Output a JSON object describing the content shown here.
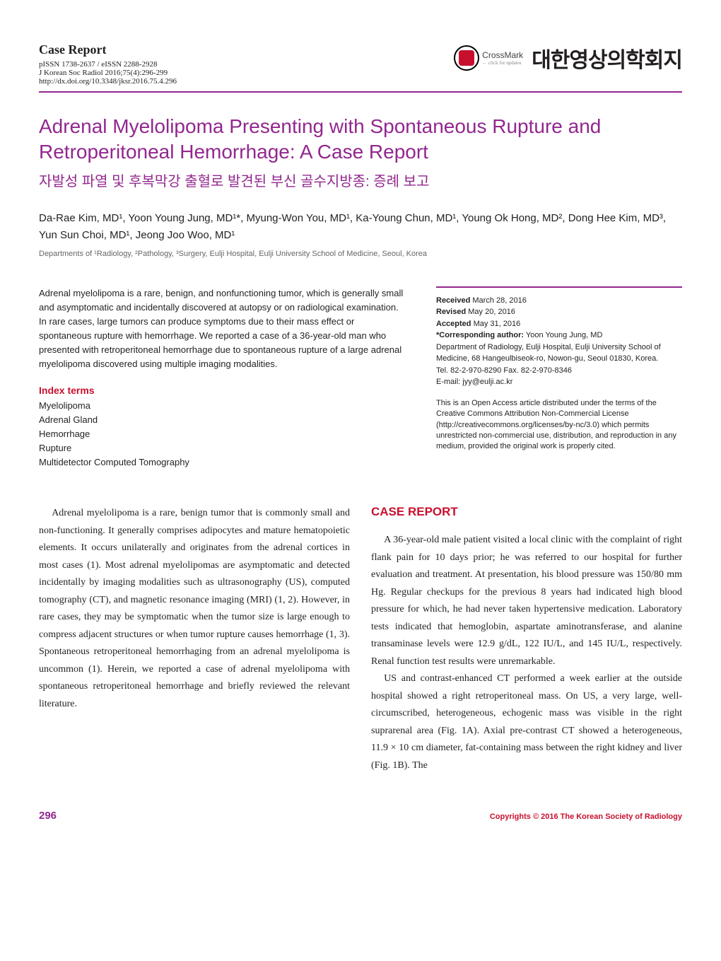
{
  "header": {
    "case_report_label": "Case Report",
    "issn": "pISSN 1738-2637 / eISSN 2288-2928",
    "journal": "J Korean Soc Radiol 2016;75(4):296-299",
    "doi": "http://dx.doi.org/10.3348/jksr.2016.75.4.296",
    "crossmark": "CrossMark",
    "crossmark_sub": "← click for updates",
    "society_name": "대한영상의학회지"
  },
  "title": {
    "main": "Adrenal Myelolipoma Presenting with Spontaneous Rupture and Retroperitoneal Hemorrhage: A Case Report",
    "korean": "자발성 파열 및 후복막강 출혈로 발견된 부신 골수지방종: 증례 보고"
  },
  "authors": "Da-Rae Kim, MD¹, Yoon Young Jung, MD¹*, Myung-Won You, MD¹, Ka-Young Chun, MD¹, Young Ok Hong, MD², Dong Hee Kim, MD³, Yun Sun Choi, MD¹, Jeong Joo Woo, MD¹",
  "affiliations": "Departments of ¹Radiology, ²Pathology, ³Surgery, Eulji Hospital, Eulji University School of Medicine, Seoul, Korea",
  "abstract": "Adrenal myelolipoma is a rare, benign, and nonfunctioning tumor, which is generally small and asymptomatic and incidentally discovered at autopsy or on radiological examination. In rare cases, large tumors can produce symptoms due to their mass effect or spontaneous rupture with hemorrhage. We reported a case of a 36-year-old man who presented with retroperitoneal hemorrhage due to spontaneous rupture of a large adrenal myelolipoma discovered using multiple imaging modalities.",
  "index_terms": {
    "label": "Index terms",
    "items": [
      "Myelolipoma",
      "Adrenal Gland",
      "Hemorrhage",
      "Rupture",
      "Multidetector Computed Tomography"
    ]
  },
  "meta": {
    "received_label": "Received",
    "received": "March 28, 2016",
    "revised_label": "Revised",
    "revised": "May 20, 2016",
    "accepted_label": "Accepted",
    "accepted": "May 31, 2016",
    "corresponding_label": "*Corresponding author:",
    "corresponding": "Yoon Young Jung, MD",
    "address": "Department of Radiology, Eulji Hospital, Eulji University School of Medicine, 68 Hangeulbiseok-ro, Nowon-gu, Seoul 01830, Korea.",
    "tel": "Tel. 82-2-970-8290  Fax. 82-2-970-8346",
    "email": "E-mail: jyy@eulji.ac.kr"
  },
  "license": "This is an Open Access article distributed under the terms of the Creative Commons Attribution Non-Commercial License (http://creativecommons.org/licenses/by-nc/3.0) which permits unrestricted non-commercial use, distribution, and reproduction in any medium, provided the original work is properly cited.",
  "body": {
    "intro": "Adrenal myelolipoma is a rare, benign tumor that is commonly small and non-functioning. It generally comprises adipocytes and mature hematopoietic elements. It occurs unilaterally and originates from the adrenal cortices in most cases (1). Most adrenal myelolipomas are asymptomatic and detected incidentally by imaging modalities such as ultrasonography (US), computed tomography (CT), and magnetic resonance imaging (MRI) (1, 2). However, in rare cases, they may be symptomatic when the tumor size is large enough to compress adjacent structures or when tumor rupture causes hemorrhage (1, 3). Spontaneous retroperitoneal hemorrhaging from an adrenal myelolipoma is uncommon (1). Herein, we reported a case of adrenal myelolipoma with spontaneous retroperitoneal hemorrhage and briefly reviewed the relevant literature.",
    "case_report_heading": "CASE REPORT",
    "case_p1": "A 36-year-old male patient visited a local clinic with the complaint of right flank pain for 10 days prior; he was referred to our hospital for further evaluation and treatment. At presentation, his blood pressure was 150/80 mm Hg. Regular checkups for the previous 8 years had indicated high blood pressure for which, he had never taken hypertensive medication. Laboratory tests indicated that hemoglobin, aspartate aminotransferase, and alanine transaminase levels were 12.9 g/dL, 122 IU/L, and 145 IU/L, respectively. Renal function test results were unremarkable.",
    "case_p2": "US and contrast-enhanced CT performed a week earlier at the outside hospital showed a right retroperitoneal mass. On US, a very large, well-circumscribed, heterogeneous, echogenic mass was visible in the right suprarenal area (Fig. 1A). Axial pre-contrast CT showed a heterogeneous, 11.9 × 10 cm diameter, fat-containing mass between the right kidney and liver (Fig. 1B). The"
  },
  "footer": {
    "page": "296",
    "copyright": "Copyrights © 2016 The Korean Society of Radiology"
  },
  "colors": {
    "purple": "#92278f",
    "red": "#c8102e",
    "text": "#231f20",
    "gray": "#666666"
  }
}
